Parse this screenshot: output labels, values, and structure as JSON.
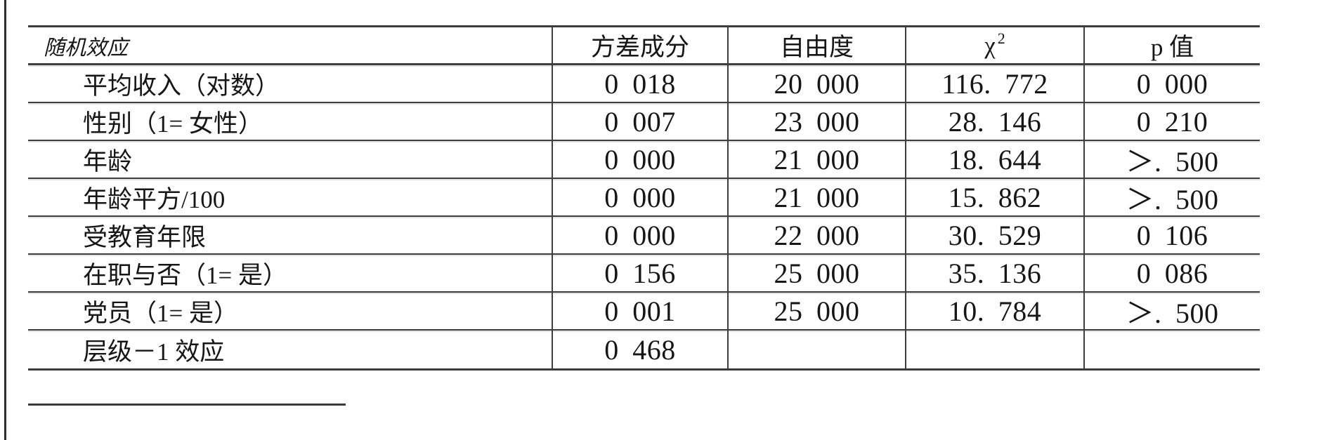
{
  "table": {
    "header": {
      "col1": "随机效应",
      "col2": "方差成分",
      "col3": "自由度",
      "col4_base": "χ",
      "col4_sup": "2",
      "col5": "p 值"
    },
    "rows": [
      {
        "label": "平均收入（对数）",
        "variance": "0 018",
        "df": "20 000",
        "chi2": "116. 772",
        "p": "0 000"
      },
      {
        "label": "性别（1= 女性）",
        "variance": "0 007",
        "df": "23 000",
        "chi2": "28. 146",
        "p": "0 210"
      },
      {
        "label": "年龄",
        "variance": "0 000",
        "df": "21 000",
        "chi2": "18. 644",
        "p": "＞. 500"
      },
      {
        "label": "年龄平方/100",
        "variance": "0 000",
        "df": "21 000",
        "chi2": "15. 862",
        "p": "＞. 500"
      },
      {
        "label": "受教育年限",
        "variance": "0 000",
        "df": "22 000",
        "chi2": "30. 529",
        "p": "0 106"
      },
      {
        "label": "在职与否（1= 是）",
        "variance": "0 156",
        "df": "25 000",
        "chi2": "35. 136",
        "p": "0 086"
      },
      {
        "label": "党员（1= 是）",
        "variance": "0 001",
        "df": "25 000",
        "chi2": "10. 784",
        "p": "＞. 500"
      },
      {
        "label": "层级－1 效应",
        "variance": "0 468",
        "df": "",
        "chi2": "",
        "p": ""
      }
    ]
  }
}
